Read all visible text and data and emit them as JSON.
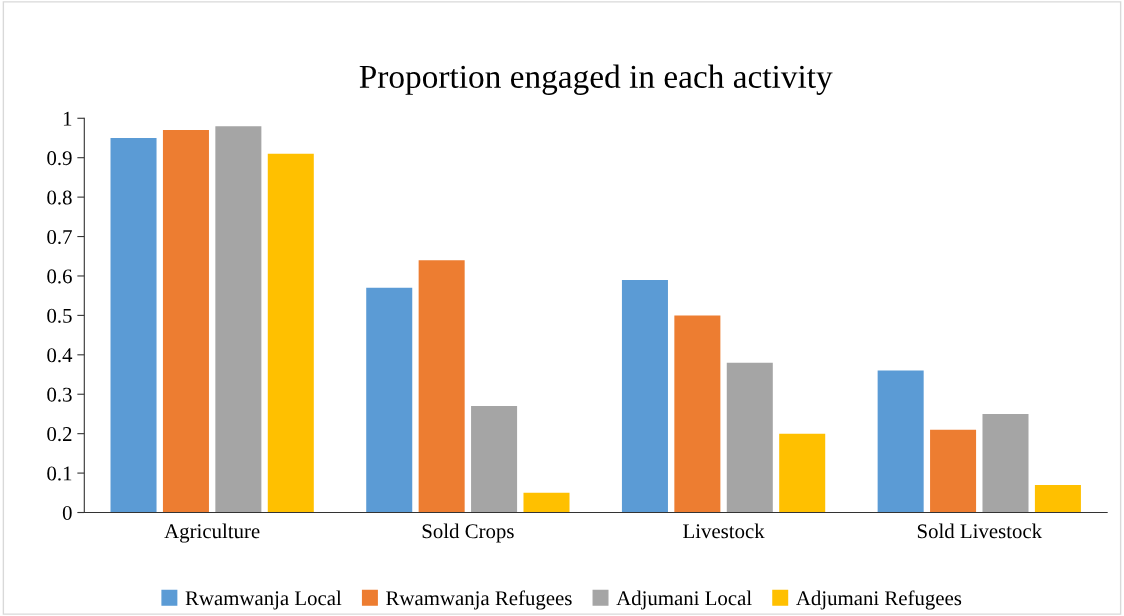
{
  "chart_data": {
    "type": "bar",
    "title": "Proportion engaged in each activity",
    "categories": [
      "Agriculture",
      "Sold Crops",
      "Livestock",
      "Sold Livestock"
    ],
    "series": [
      {
        "name": "Rwamwanja Local",
        "color": "#5b9bd5",
        "values": [
          0.95,
          0.57,
          0.59,
          0.36
        ]
      },
      {
        "name": "Rwamwanja Refugees",
        "color": "#ed7d31",
        "values": [
          0.97,
          0.64,
          0.5,
          0.21
        ]
      },
      {
        "name": "Adjumani Local",
        "color": "#a5a5a5",
        "values": [
          0.98,
          0.27,
          0.38,
          0.25
        ]
      },
      {
        "name": "Adjumani Refugees",
        "color": "#ffc000",
        "values": [
          0.91,
          0.05,
          0.2,
          0.07
        ]
      }
    ],
    "ylim": [
      0,
      1
    ],
    "yticks": [
      0,
      0.1,
      0.2,
      0.3,
      0.4,
      0.5,
      0.6,
      0.7,
      0.8,
      0.9,
      1
    ],
    "grid": false,
    "legend": "bottom"
  }
}
